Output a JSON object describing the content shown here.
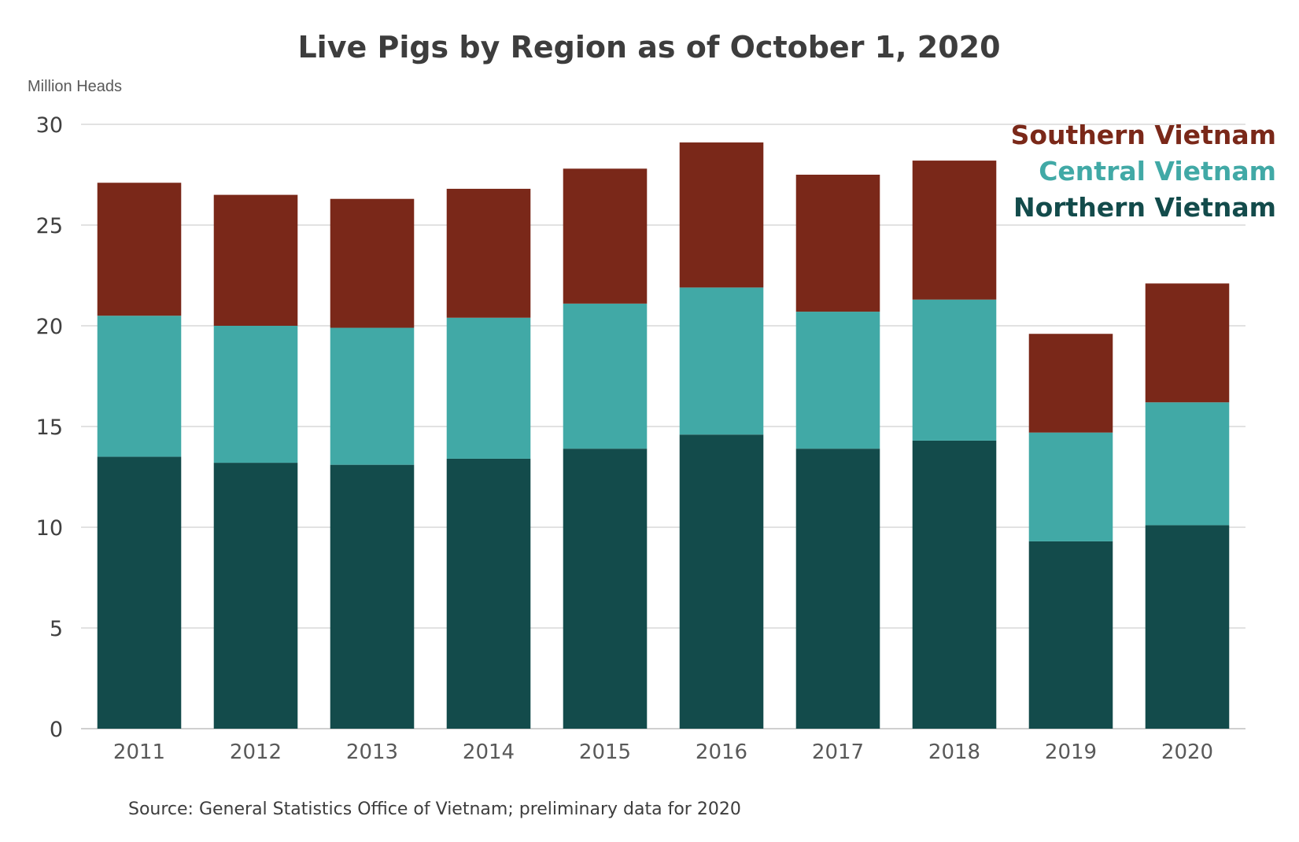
{
  "chart_data": {
    "type": "bar",
    "stacked": true,
    "title": "Live Pigs by Region as of October 1, 2020",
    "ylabel": "Million Heads",
    "xlabel": "",
    "ylim": [
      0,
      30
    ],
    "yticks": [
      0,
      5,
      10,
      15,
      20,
      25,
      30
    ],
    "categories": [
      "2011",
      "2012",
      "2013",
      "2014",
      "2015",
      "2016",
      "2017",
      "2018",
      "2019",
      "2020"
    ],
    "series": [
      {
        "name": "Northern Vietnam",
        "color": "#134b4b",
        "values": [
          13.5,
          13.2,
          13.1,
          13.4,
          13.9,
          14.6,
          13.9,
          14.3,
          9.3,
          10.1
        ]
      },
      {
        "name": "Central Vietnam",
        "color": "#41a9a6",
        "values": [
          7.0,
          6.8,
          6.8,
          7.0,
          7.2,
          7.3,
          6.8,
          7.0,
          5.4,
          6.1
        ]
      },
      {
        "name": "Southern Vietnam",
        "color": "#7a2819",
        "values": [
          6.6,
          6.5,
          6.4,
          6.4,
          6.7,
          7.2,
          6.8,
          6.9,
          4.9,
          5.9
        ]
      }
    ],
    "legend": {
      "position": "top-right",
      "order": [
        "Southern Vietnam",
        "Central Vietnam",
        "Northern Vietnam"
      ]
    },
    "grid": true
  },
  "source": "Source: General Statistics Office of Vietnam; preliminary data for 2020"
}
